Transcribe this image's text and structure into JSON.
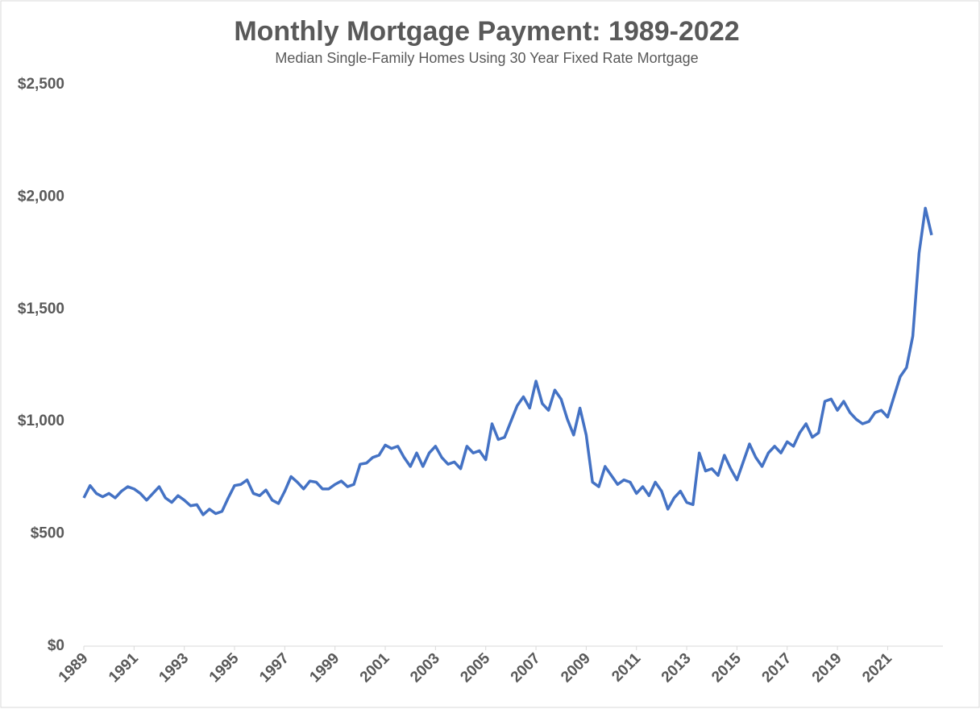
{
  "chart_data": {
    "type": "line",
    "title": "Monthly Mortgage Payment: 1989-2022",
    "subtitle": "Median Single-Family Homes Using 30 Year Fixed Rate Mortgage",
    "x": [
      1989,
      1989.25,
      1989.5,
      1989.75,
      1990,
      1990.25,
      1990.5,
      1990.75,
      1991,
      1991.25,
      1991.5,
      1991.75,
      1992,
      1992.25,
      1992.5,
      1992.75,
      1993,
      1993.25,
      1993.5,
      1993.75,
      1994,
      1994.25,
      1994.5,
      1994.75,
      1995,
      1995.25,
      1995.5,
      1995.75,
      1996,
      1996.25,
      1996.5,
      1996.75,
      1997,
      1997.25,
      1997.5,
      1997.75,
      1998,
      1998.25,
      1998.5,
      1998.75,
      1999,
      1999.25,
      1999.5,
      1999.75,
      2000,
      2000.25,
      2000.5,
      2000.75,
      2001,
      2001.25,
      2001.5,
      2001.75,
      2002,
      2002.25,
      2002.5,
      2002.75,
      2003,
      2003.25,
      2003.5,
      2003.75,
      2004,
      2004.25,
      2004.5,
      2004.75,
      2005,
      2005.25,
      2005.5,
      2005.75,
      2006,
      2006.25,
      2006.5,
      2006.75,
      2007,
      2007.25,
      2007.5,
      2007.75,
      2008,
      2008.25,
      2008.5,
      2008.75,
      2009,
      2009.25,
      2009.5,
      2009.75,
      2010,
      2010.25,
      2010.5,
      2010.75,
      2011,
      2011.25,
      2011.5,
      2011.75,
      2012,
      2012.25,
      2012.5,
      2012.75,
      2013,
      2013.25,
      2013.5,
      2013.75,
      2014,
      2014.25,
      2014.5,
      2014.75,
      2015,
      2015.25,
      2015.5,
      2015.75,
      2016,
      2016.25,
      2016.5,
      2016.75,
      2017,
      2017.25,
      2017.5,
      2017.75,
      2018,
      2018.25,
      2018.5,
      2018.75,
      2019,
      2019.25,
      2019.5,
      2019.75,
      2020,
      2020.25,
      2020.5,
      2020.75,
      2021,
      2021.25,
      2021.5,
      2021.75,
      2022,
      2022.25,
      2022.5,
      2022.75
    ],
    "series": [
      {
        "name": "Monthly Mortgage Payment",
        "color": "#4472c4",
        "values": [
          660,
          715,
          680,
          665,
          680,
          660,
          690,
          710,
          700,
          680,
          650,
          680,
          710,
          660,
          640,
          670,
          650,
          625,
          630,
          585,
          610,
          590,
          600,
          660,
          715,
          720,
          740,
          680,
          670,
          695,
          650,
          635,
          690,
          755,
          730,
          700,
          735,
          730,
          700,
          700,
          720,
          735,
          710,
          720,
          810,
          815,
          840,
          850,
          895,
          880,
          890,
          840,
          800,
          860,
          800,
          860,
          890,
          840,
          810,
          820,
          790,
          890,
          860,
          870,
          830,
          990,
          920,
          930,
          1000,
          1070,
          1110,
          1060,
          1180,
          1080,
          1050,
          1140,
          1100,
          1010,
          940,
          1060,
          940,
          730,
          710,
          800,
          760,
          720,
          740,
          730,
          680,
          710,
          670,
          730,
          690,
          610,
          660,
          690,
          640,
          630,
          860,
          780,
          790,
          760,
          850,
          790,
          740,
          820,
          900,
          840,
          800,
          860,
          890,
          860,
          910,
          890,
          950,
          990,
          930,
          950,
          1090,
          1100,
          1050,
          1090,
          1040,
          1010,
          990,
          1000,
          1040,
          1050,
          1020,
          1110,
          1200,
          1240,
          1380,
          1750,
          1950,
          1830
        ]
      }
    ],
    "xlim": [
      1989,
      2023.2
    ],
    "xticks": [
      1989,
      1991,
      1993,
      1995,
      1997,
      1999,
      2001,
      2003,
      2005,
      2007,
      2009,
      2011,
      2013,
      2015,
      2017,
      2019,
      2021
    ],
    "ylim": [
      0,
      2500
    ],
    "yticks": [
      {
        "value": 0,
        "label": "$0"
      },
      {
        "value": 500,
        "label": "$500"
      },
      {
        "value": 1000,
        "label": "$1,000"
      },
      {
        "value": 1500,
        "label": "$1,500"
      },
      {
        "value": 2000,
        "label": "$2,000"
      },
      {
        "value": 2500,
        "label": "$2,500"
      }
    ]
  }
}
